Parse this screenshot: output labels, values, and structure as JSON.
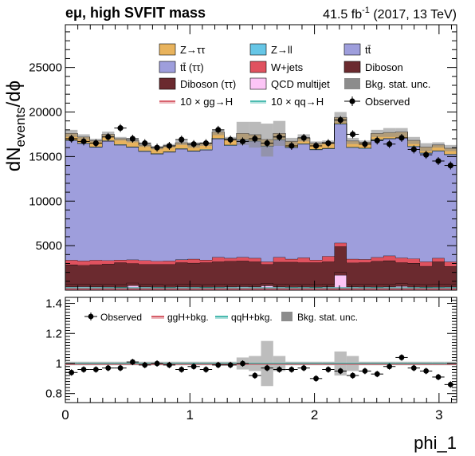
{
  "header": {
    "channel": "eμ, high SVFIT mass",
    "lumi_value": "41.5 fb",
    "lumi_exp": "-1",
    "lumi_rest": " (2017, 13 TeV)"
  },
  "main_panel": {
    "ylabel_main": "dN",
    "ylabel_sub": "events",
    "ylabel_tail": "/dϕ",
    "ylim": [
      0,
      29800
    ],
    "yticks": [
      5000,
      10000,
      15000,
      20000,
      25000
    ],
    "yticklabels": [
      "5000",
      "10000",
      "15000",
      "20000",
      "25000"
    ]
  },
  "ratio_panel": {
    "ylim": [
      0.74,
      1.44
    ],
    "yticks": [
      0.8,
      1.0,
      1.2,
      1.4
    ],
    "yticklabels": [
      "0.8",
      "1",
      "1.2",
      "1.4"
    ]
  },
  "x_axis": {
    "label": "phi_1",
    "xlim": [
      0,
      3.1416
    ],
    "ticks": [
      0,
      1,
      2,
      3
    ],
    "ticklabels": [
      "0",
      "1",
      "2",
      "3"
    ]
  },
  "legend_main": [
    {
      "key": "ztt",
      "label": "Z→ττ",
      "kind": "fill",
      "color": "#e8b35d"
    },
    {
      "key": "zll",
      "label": "Z→ll",
      "kind": "fill",
      "color": "#66c6e6"
    },
    {
      "key": "tt",
      "label": "tt̄",
      "kind": "fill",
      "color": "#9e9edc"
    },
    {
      "key": "tttt",
      "label": "tt̄ (ττ)",
      "kind": "fill",
      "color": "#9e9edc"
    },
    {
      "key": "wjets",
      "label": "W+jets",
      "kind": "fill",
      "color": "#e0525f"
    },
    {
      "key": "diboson",
      "label": "Diboson",
      "kind": "fill",
      "color": "#6b2a2f"
    },
    {
      "key": "dibosontt",
      "label": "Diboson (ττ)",
      "kind": "fill",
      "color": "#6b2a2f"
    },
    {
      "key": "qcd",
      "label": "QCD multijet",
      "kind": "fill",
      "color": "#fcc5f6"
    },
    {
      "key": "unc",
      "label": "Bkg. stat. unc.",
      "kind": "fill",
      "color": "#8c8c8c"
    },
    {
      "key": "ggh",
      "label": "10 × gg→H",
      "kind": "line",
      "color": "#d24d5a"
    },
    {
      "key": "qqh",
      "label": "10 × qq→H",
      "kind": "line",
      "color": "#35b3a6"
    },
    {
      "key": "obs",
      "label": "Observed",
      "kind": "marker",
      "color": "#000000"
    }
  ],
  "legend_ratio": [
    {
      "key": "obs",
      "label": "Observed",
      "kind": "marker",
      "color": "#000000"
    },
    {
      "key": "ggh",
      "label": "ggH+bkg.",
      "kind": "line",
      "color": "#d24d5a"
    },
    {
      "key": "qqh",
      "label": "qqH+bkg.",
      "kind": "line",
      "color": "#35b3a6"
    },
    {
      "key": "unc",
      "label": "Bkg. stat. unc.",
      "kind": "fill",
      "color": "#8c8c8c"
    }
  ],
  "chart_data": {
    "type": "bar",
    "stacked": true,
    "bins": 32,
    "x_range": [
      0,
      3.1416
    ],
    "series": [
      {
        "name": "QCD multijet",
        "key": "qcd",
        "color": "#fcc5f6",
        "values": [
          380,
          400,
          380,
          370,
          350,
          520,
          380,
          360,
          340,
          380,
          370,
          350,
          360,
          380,
          400,
          380,
          500,
          380,
          360,
          370,
          350,
          380,
          1700,
          380,
          370,
          360,
          380,
          450,
          370,
          350,
          360,
          370
        ]
      },
      {
        "name": "Diboson (ττ)",
        "key": "dibosontt",
        "color": "#6b2a2f",
        "values": [
          300,
          300,
          300,
          300,
          300,
          300,
          300,
          300,
          300,
          300,
          300,
          300,
          300,
          300,
          300,
          300,
          300,
          300,
          300,
          300,
          300,
          300,
          300,
          300,
          300,
          300,
          300,
          300,
          300,
          300,
          300,
          300
        ]
      },
      {
        "name": "Diboson",
        "key": "diboson",
        "color": "#6b2a2f",
        "values": [
          2180,
          2100,
          2200,
          2270,
          2450,
          2180,
          2220,
          2240,
          2260,
          2420,
          2380,
          2450,
          2540,
          2570,
          2590,
          2520,
          2100,
          2470,
          2490,
          2430,
          2450,
          2520,
          2900,
          2400,
          2430,
          2590,
          2640,
          2350,
          2370,
          2050,
          2540,
          2020
        ]
      },
      {
        "name": "W+jets",
        "key": "wjets",
        "color": "#e0525f",
        "values": [
          520,
          500,
          500,
          410,
          300,
          420,
          450,
          370,
          390,
          330,
          450,
          300,
          500,
          350,
          410,
          400,
          300,
          550,
          350,
          550,
          300,
          610,
          400,
          420,
          370,
          440,
          550,
          530,
          500,
          500,
          400,
          500
        ]
      },
      {
        "name": "tt̄",
        "key": "tt",
        "color": "#9e9edc",
        "values": [
          13420,
          13160,
          12670,
          13380,
          12900,
          12630,
          12230,
          12020,
          12210,
          12420,
          12100,
          12350,
          13300,
          12650,
          13160,
          13120,
          12950,
          13150,
          12510,
          12750,
          12370,
          12070,
          13350,
          12500,
          12430,
          13180,
          13120,
          13450,
          12580,
          12170,
          12010,
          12030
        ]
      },
      {
        "name": "Z→ll",
        "key": "zll",
        "color": "#66c6e6",
        "values": [
          60,
          60,
          60,
          60,
          60,
          60,
          60,
          60,
          60,
          60,
          60,
          60,
          60,
          60,
          60,
          60,
          60,
          60,
          60,
          60,
          60,
          60,
          60,
          60,
          60,
          60,
          60,
          60,
          60,
          60,
          60,
          60
        ]
      },
      {
        "name": "Z→ττ",
        "key": "ztt",
        "color": "#e8b35d",
        "values": [
          740,
          680,
          690,
          710,
          640,
          690,
          660,
          650,
          640,
          640,
          640,
          670,
          700,
          690,
          680,
          670,
          700,
          690,
          640,
          640,
          670,
          660,
          690,
          700,
          640,
          670,
          650,
          620,
          630,
          640,
          640,
          650
        ]
      }
    ],
    "total_background": [
      17600,
      17200,
      16800,
      17500,
      17000,
      16800,
      16300,
      16000,
      16200,
      16550,
      16300,
      16420,
      17700,
      17000,
      17600,
      17450,
      17110,
      17600,
      16710,
      17100,
      16500,
      16600,
      19400,
      16760,
      16600,
      17600,
      17700,
      17700,
      16800,
      16070,
      16310,
      15930
    ],
    "unc_top": [
      18000,
      17500,
      17000,
      17800,
      17200,
      17000,
      16500,
      16200,
      16400,
      16800,
      16600,
      16600,
      18000,
      17200,
      18900,
      18900,
      18700,
      19000,
      17100,
      17500,
      16700,
      16800,
      20000,
      17100,
      16800,
      18000,
      18200,
      18200,
      17200,
      16500,
      16600,
      16300
    ],
    "unc_bottom": [
      17200,
      16900,
      16600,
      17200,
      16800,
      16600,
      16100,
      15800,
      16000,
      16300,
      16000,
      16200,
      17400,
      16800,
      16300,
      16000,
      15000,
      16200,
      16300,
      16700,
      16300,
      16400,
      18800,
      16400,
      16400,
      17200,
      17200,
      17200,
      16400,
      15600,
      16000,
      15600
    ],
    "observed": [
      17000,
      16700,
      16500,
      17200,
      18200,
      17000,
      16500,
      16000,
      16200,
      16900,
      16400,
      16500,
      18000,
      16900,
      16700,
      17000,
      16500,
      17200,
      16200,
      17100,
      16200,
      16500,
      19100,
      17500,
      16400,
      16800,
      16400,
      17100,
      15800,
      15200,
      14500,
      14000
    ],
    "ratio_observed": [
      0.94,
      0.96,
      0.96,
      0.97,
      0.97,
      1.01,
      0.99,
      1.0,
      0.99,
      0.96,
      0.98,
      0.96,
      0.99,
      0.99,
      1.0,
      0.92,
      0.97,
      0.96,
      0.96,
      0.97,
      0.9,
      0.96,
      0.95,
      0.92,
      0.95,
      0.93,
      0.98,
      1.04,
      0.97,
      0.95,
      0.91,
      0.86
    ],
    "ratio_unc_half": [
      0.012,
      0.012,
      0.012,
      0.012,
      0.012,
      0.012,
      0.012,
      0.012,
      0.012,
      0.012,
      0.012,
      0.012,
      0.012,
      0.012,
      0.04,
      0.05,
      0.15,
      0.05,
      0.012,
      0.012,
      0.012,
      0.012,
      0.08,
      0.05,
      0.012,
      0.012,
      0.012,
      0.012,
      0.012,
      0.012,
      0.012,
      0.012
    ],
    "ratio_lines": {
      "ggh": 0.995,
      "qqh": 1.0
    }
  }
}
